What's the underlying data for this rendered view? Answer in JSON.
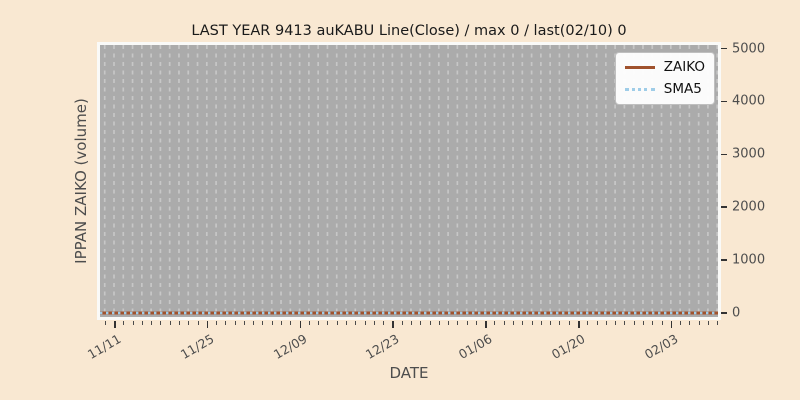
{
  "figure": {
    "title": "LAST YEAR 9413 auKABU Line(Close) / max 0 / last(02/10) 0",
    "xlabel": "DATE",
    "ylabel": "IPPAN ZAIKO (volume)"
  },
  "legend": {
    "position": "upper right",
    "items": [
      {
        "label": "ZAIKO",
        "color": "#A0522D",
        "line_style": "solid"
      },
      {
        "label": "SMA5",
        "color": "#9FCDE8",
        "line_style": "dotted"
      }
    ]
  },
  "chart_data": {
    "type": "line",
    "title": "LAST YEAR 9413 auKABU Line(Close) / max 0 / last(02/10) 0",
    "xlabel": "DATE",
    "ylabel": "IPPAN ZAIKO (volume)",
    "x_range": [
      "11/11",
      "02/10"
    ],
    "x_tick_labels": [
      "11/11",
      "11/25",
      "12/09",
      "12/23",
      "01/06",
      "01/20",
      "02/03"
    ],
    "y_tick_labels": [
      "0",
      "1000",
      "2000",
      "3000",
      "4000",
      "5000"
    ],
    "ylim": [
      0,
      5000
    ],
    "grid": "vertical-dashed-minor",
    "legend_position": "upper right",
    "series": [
      {
        "name": "ZAIKO",
        "style": "solid",
        "color": "#A0522D",
        "constant_value": 0
      },
      {
        "name": "SMA5",
        "style": "dotted",
        "color": "#9FCDE8",
        "constant_value": 0
      }
    ],
    "annotations": {
      "max": 0,
      "last_date": "02/10",
      "last_value": 0
    }
  },
  "colors": {
    "figure_background": "#F9E8D2",
    "plot_background": "#ABABAB",
    "gridline": "#C7C7C7",
    "spine": "#FAFAF8",
    "tick_mark": "#333333",
    "tick_label_text": "#4D4D4D",
    "title_text": "#1A1A1A"
  }
}
